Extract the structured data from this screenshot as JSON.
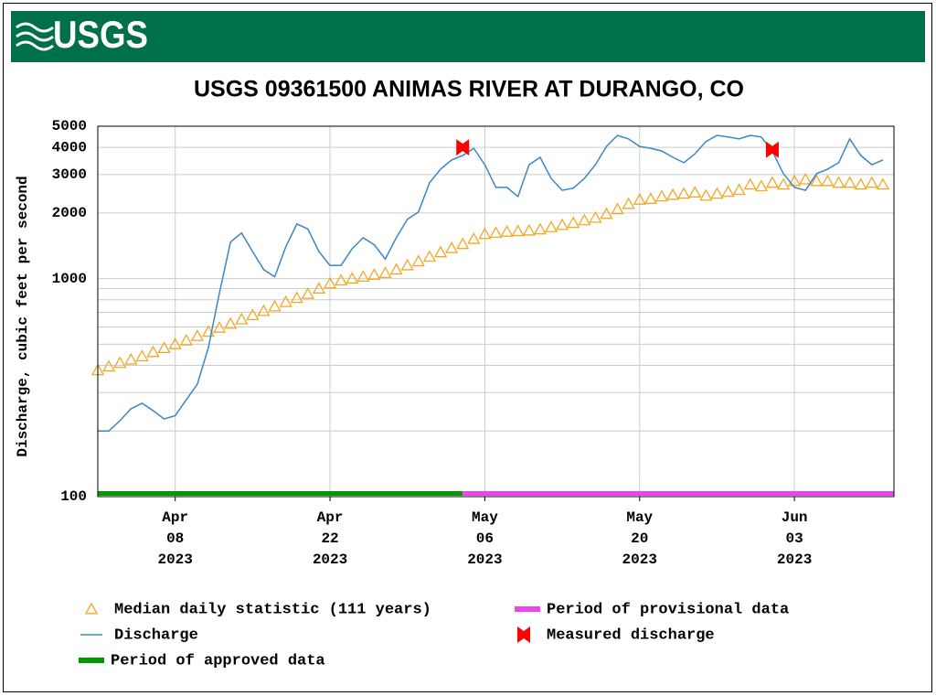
{
  "header": {
    "logo_text": "USGS"
  },
  "chart_data": {
    "type": "line",
    "title": "USGS 09361500 ANIMAS RIVER AT DURANGO, CO",
    "y_label": "Discharge, cubic feet per second",
    "log_scale": true,
    "grid": true,
    "ylim": [
      100,
      5000
    ],
    "yticks": [
      100,
      1000,
      2000,
      3000,
      4000,
      5000
    ],
    "minor_yticks": [
      200,
      300,
      400,
      500,
      600,
      700,
      800,
      900
    ],
    "xlim": [
      "2023-04-01",
      "2023-06-12"
    ],
    "xticks": [
      {
        "value": "2023-04-08",
        "label": [
          "Apr",
          "08",
          "2023"
        ]
      },
      {
        "value": "2023-04-22",
        "label": [
          "Apr",
          "22",
          "2023"
        ]
      },
      {
        "value": "2023-05-06",
        "label": [
          "May",
          "06",
          "2023"
        ]
      },
      {
        "value": "2023-05-20",
        "label": [
          "May",
          "20",
          "2023"
        ]
      },
      {
        "value": "2023-06-03",
        "label": [
          "Jun",
          "03",
          "2023"
        ]
      }
    ],
    "x": [
      "2023-04-01",
      "2023-04-02",
      "2023-04-03",
      "2023-04-04",
      "2023-04-05",
      "2023-04-06",
      "2023-04-07",
      "2023-04-08",
      "2023-04-09",
      "2023-04-10",
      "2023-04-11",
      "2023-04-12",
      "2023-04-13",
      "2023-04-14",
      "2023-04-15",
      "2023-04-16",
      "2023-04-17",
      "2023-04-18",
      "2023-04-19",
      "2023-04-20",
      "2023-04-21",
      "2023-04-22",
      "2023-04-23",
      "2023-04-24",
      "2023-04-25",
      "2023-04-26",
      "2023-04-27",
      "2023-04-28",
      "2023-04-29",
      "2023-04-30",
      "2023-05-01",
      "2023-05-02",
      "2023-05-03",
      "2023-05-04",
      "2023-05-05",
      "2023-05-06",
      "2023-05-07",
      "2023-05-08",
      "2023-05-09",
      "2023-05-10",
      "2023-05-11",
      "2023-05-12",
      "2023-05-13",
      "2023-05-14",
      "2023-05-15",
      "2023-05-16",
      "2023-05-17",
      "2023-05-18",
      "2023-05-19",
      "2023-05-20",
      "2023-05-21",
      "2023-05-22",
      "2023-05-23",
      "2023-05-24",
      "2023-05-25",
      "2023-05-26",
      "2023-05-27",
      "2023-05-28",
      "2023-05-29",
      "2023-05-30",
      "2023-05-31",
      "2023-06-01",
      "2023-06-02",
      "2023-06-03",
      "2023-06-04",
      "2023-06-05",
      "2023-06-06",
      "2023-06-07",
      "2023-06-08",
      "2023-06-09",
      "2023-06-10",
      "2023-06-11"
    ],
    "series": [
      {
        "name": "Median daily statistic (111 years)",
        "color": "#f5a623",
        "marker": "triangle",
        "values": [
          380,
          395,
          410,
          425,
          440,
          460,
          480,
          500,
          520,
          545,
          570,
          595,
          620,
          650,
          680,
          710,
          745,
          780,
          815,
          850,
          900,
          950,
          980,
          1000,
          1020,
          1040,
          1060,
          1100,
          1150,
          1200,
          1260,
          1320,
          1380,
          1440,
          1520,
          1600,
          1620,
          1640,
          1650,
          1660,
          1680,
          1720,
          1760,
          1800,
          1850,
          1900,
          1980,
          2080,
          2200,
          2300,
          2320,
          2380,
          2420,
          2450,
          2480,
          2400,
          2450,
          2500,
          2550,
          2700,
          2650,
          2750,
          2700,
          2800,
          2850,
          2800,
          2800,
          2750,
          2750,
          2700,
          2750,
          2700
        ]
      },
      {
        "name": "Discharge",
        "color": "#3d85c6",
        "marker": "line",
        "values": [
          200,
          200,
          223,
          253,
          268,
          248,
          227,
          235,
          278,
          328,
          483,
          861,
          1470,
          1620,
          1330,
          1100,
          1020,
          1400,
          1780,
          1690,
          1330,
          1150,
          1150,
          1370,
          1540,
          1430,
          1230,
          1540,
          1870,
          2020,
          2750,
          3180,
          3500,
          3670,
          3960,
          3330,
          2620,
          2620,
          2380,
          3330,
          3600,
          2880,
          2540,
          2600,
          2880,
          3330,
          4040,
          4540,
          4370,
          4040,
          3960,
          3850,
          3600,
          3400,
          3740,
          4250,
          4540,
          4460,
          4370,
          4540,
          4460,
          3850,
          3030,
          2620,
          2540,
          3030,
          3180,
          3400,
          4370,
          3670,
          3330,
          3500
        ]
      }
    ],
    "measured": {
      "name": "Measured discharge",
      "color": "#ff0000",
      "x": [
        "2023-05-04",
        "2023-06-01"
      ],
      "values": [
        4000,
        3900
      ]
    },
    "periods": [
      {
        "name": "Period of approved data",
        "color": "#009900",
        "start": "2023-04-01",
        "end": "2023-05-04"
      },
      {
        "name": "Period of provisional data",
        "color": "#ee44ee",
        "start": "2023-05-04",
        "end": "2023-06-12"
      }
    ]
  }
}
